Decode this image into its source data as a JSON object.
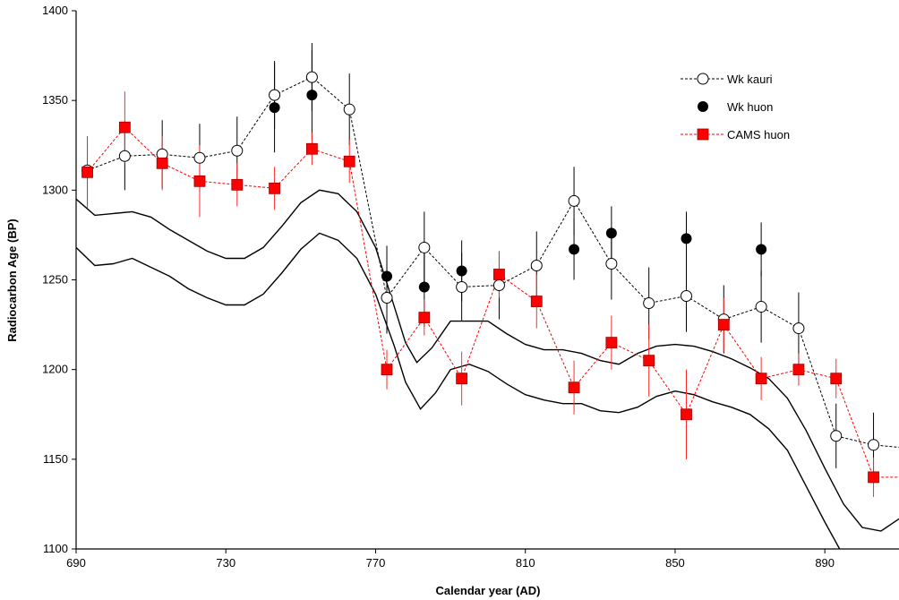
{
  "chart_data": {
    "type": "scatter",
    "title": "",
    "xlabel": "Calendar year (AD)",
    "ylabel": "Radiocarbon Age (BP)",
    "xlim": [
      690,
      910
    ],
    "ylim": [
      1100,
      1400
    ],
    "xticks": [
      690,
      730,
      770,
      810,
      850,
      890
    ],
    "yticks": [
      1100,
      1150,
      1200,
      1250,
      1300,
      1350,
      1400
    ],
    "grid": false,
    "legend_position": "top-right",
    "series": [
      {
        "name": "Wk kauri",
        "style": "dashed-line-open-circle",
        "color": "#000000",
        "points": [
          {
            "x": 693,
            "y": 1311,
            "err": 19
          },
          {
            "x": 703,
            "y": 1319,
            "err": 19
          },
          {
            "x": 713,
            "y": 1320,
            "err": 19
          },
          {
            "x": 723,
            "y": 1318,
            "err": 19
          },
          {
            "x": 733,
            "y": 1322,
            "err": 19
          },
          {
            "x": 743,
            "y": 1353,
            "err": 19
          },
          {
            "x": 753,
            "y": 1363,
            "err": 19
          },
          {
            "x": 763,
            "y": 1345,
            "err": 20
          },
          {
            "x": 773,
            "y": 1240,
            "err": 20
          },
          {
            "x": 783,
            "y": 1268,
            "err": 20
          },
          {
            "x": 793,
            "y": 1246,
            "err": 19
          },
          {
            "x": 803,
            "y": 1247,
            "err": 19
          },
          {
            "x": 813,
            "y": 1258,
            "err": 19
          },
          {
            "x": 823,
            "y": 1294,
            "err": 19
          },
          {
            "x": 833,
            "y": 1259,
            "err": 20
          },
          {
            "x": 843,
            "y": 1237,
            "err": 20
          },
          {
            "x": 853,
            "y": 1241,
            "err": 20
          },
          {
            "x": 863,
            "y": 1228,
            "err": 19
          },
          {
            "x": 873,
            "y": 1235,
            "err": 20
          },
          {
            "x": 883,
            "y": 1223,
            "err": 20
          },
          {
            "x": 893,
            "y": 1163,
            "err": 18
          },
          {
            "x": 903,
            "y": 1158,
            "err": 18
          },
          {
            "x": 913,
            "y": 1156,
            "err": 18
          }
        ]
      },
      {
        "name": "Wk huon",
        "style": "filled-circle",
        "color": "#000000",
        "points": [
          {
            "x": 743,
            "y": 1346,
            "err": 25
          },
          {
            "x": 753,
            "y": 1353,
            "err": 25
          },
          {
            "x": 773,
            "y": 1252,
            "err": 17
          },
          {
            "x": 783,
            "y": 1246,
            "err": 22
          },
          {
            "x": 793,
            "y": 1255,
            "err": 17
          },
          {
            "x": 823,
            "y": 1267,
            "err": 17
          },
          {
            "x": 833,
            "y": 1276,
            "err": 15
          },
          {
            "x": 853,
            "y": 1273,
            "err": 15
          },
          {
            "x": 873,
            "y": 1267,
            "err": 15
          }
        ]
      },
      {
        "name": "CAMS huon",
        "style": "dashed-line-filled-square",
        "color": "#ff0000",
        "points": [
          {
            "x": 693,
            "y": 1310,
            "err": 20
          },
          {
            "x": 703,
            "y": 1335,
            "err": 20
          },
          {
            "x": 713,
            "y": 1315,
            "err": 15
          },
          {
            "x": 723,
            "y": 1305,
            "err": 20
          },
          {
            "x": 733,
            "y": 1303,
            "err": 12
          },
          {
            "x": 743,
            "y": 1301,
            "err": 12
          },
          {
            "x": 753,
            "y": 1323,
            "err": 9
          },
          {
            "x": 763,
            "y": 1316,
            "err": 12
          },
          {
            "x": 773,
            "y": 1200,
            "err": 11
          },
          {
            "x": 783,
            "y": 1229,
            "err": 10
          },
          {
            "x": 793,
            "y": 1195,
            "err": 15
          },
          {
            "x": 803,
            "y": 1253,
            "err": 13
          },
          {
            "x": 813,
            "y": 1238,
            "err": 15
          },
          {
            "x": 823,
            "y": 1190,
            "err": 15
          },
          {
            "x": 833,
            "y": 1215,
            "err": 15
          },
          {
            "x": 843,
            "y": 1205,
            "err": 20
          },
          {
            "x": 853,
            "y": 1175,
            "err": 25
          },
          {
            "x": 863,
            "y": 1225,
            "err": 15
          },
          {
            "x": 873,
            "y": 1195,
            "err": 12
          },
          {
            "x": 883,
            "y": 1200,
            "err": 9
          },
          {
            "x": 893,
            "y": 1195,
            "err": 11
          },
          {
            "x": 903,
            "y": 1140,
            "err": 11
          },
          {
            "x": 913,
            "y": 1140,
            "err": 20
          }
        ]
      }
    ],
    "calibration_band": {
      "color": "#000000",
      "upper": [
        {
          "x": 690,
          "y": 1295
        },
        {
          "x": 695,
          "y": 1286
        },
        {
          "x": 705,
          "y": 1288
        },
        {
          "x": 710,
          "y": 1285
        },
        {
          "x": 715,
          "y": 1278
        },
        {
          "x": 720,
          "y": 1272
        },
        {
          "x": 725,
          "y": 1266
        },
        {
          "x": 730,
          "y": 1262
        },
        {
          "x": 735,
          "y": 1262
        },
        {
          "x": 740,
          "y": 1268
        },
        {
          "x": 745,
          "y": 1280
        },
        {
          "x": 750,
          "y": 1293
        },
        {
          "x": 755,
          "y": 1300
        },
        {
          "x": 760,
          "y": 1298
        },
        {
          "x": 765,
          "y": 1288
        },
        {
          "x": 770,
          "y": 1268
        },
        {
          "x": 775,
          "y": 1235
        },
        {
          "x": 778,
          "y": 1215
        },
        {
          "x": 781,
          "y": 1204
        },
        {
          "x": 785,
          "y": 1212
        },
        {
          "x": 790,
          "y": 1227
        },
        {
          "x": 795,
          "y": 1227
        },
        {
          "x": 800,
          "y": 1227
        },
        {
          "x": 805,
          "y": 1220
        },
        {
          "x": 810,
          "y": 1214
        },
        {
          "x": 815,
          "y": 1211
        },
        {
          "x": 820,
          "y": 1211
        },
        {
          "x": 825,
          "y": 1209
        },
        {
          "x": 830,
          "y": 1205
        },
        {
          "x": 835,
          "y": 1203
        },
        {
          "x": 840,
          "y": 1209
        },
        {
          "x": 845,
          "y": 1213
        },
        {
          "x": 850,
          "y": 1214
        },
        {
          "x": 855,
          "y": 1213
        },
        {
          "x": 860,
          "y": 1210
        },
        {
          "x": 865,
          "y": 1206
        },
        {
          "x": 870,
          "y": 1201
        },
        {
          "x": 875,
          "y": 1195
        },
        {
          "x": 880,
          "y": 1184
        },
        {
          "x": 885,
          "y": 1166
        },
        {
          "x": 890,
          "y": 1145
        },
        {
          "x": 895,
          "y": 1125
        },
        {
          "x": 900,
          "y": 1112
        },
        {
          "x": 905,
          "y": 1110
        },
        {
          "x": 910,
          "y": 1117
        },
        {
          "x": 915,
          "y": 1127
        }
      ],
      "lower": [
        {
          "x": 690,
          "y": 1268
        },
        {
          "x": 695,
          "y": 1258
        },
        {
          "x": 700,
          "y": 1259
        },
        {
          "x": 705,
          "y": 1262
        },
        {
          "x": 710,
          "y": 1257
        },
        {
          "x": 715,
          "y": 1252
        },
        {
          "x": 720,
          "y": 1245
        },
        {
          "x": 725,
          "y": 1240
        },
        {
          "x": 730,
          "y": 1236
        },
        {
          "x": 735,
          "y": 1236
        },
        {
          "x": 740,
          "y": 1242
        },
        {
          "x": 745,
          "y": 1254
        },
        {
          "x": 750,
          "y": 1267
        },
        {
          "x": 755,
          "y": 1276
        },
        {
          "x": 760,
          "y": 1272
        },
        {
          "x": 765,
          "y": 1262
        },
        {
          "x": 770,
          "y": 1242
        },
        {
          "x": 775,
          "y": 1213
        },
        {
          "x": 778,
          "y": 1193
        },
        {
          "x": 782,
          "y": 1178
        },
        {
          "x": 786,
          "y": 1187
        },
        {
          "x": 790,
          "y": 1200
        },
        {
          "x": 795,
          "y": 1203
        },
        {
          "x": 800,
          "y": 1199
        },
        {
          "x": 805,
          "y": 1192
        },
        {
          "x": 810,
          "y": 1186
        },
        {
          "x": 815,
          "y": 1183
        },
        {
          "x": 820,
          "y": 1181
        },
        {
          "x": 825,
          "y": 1181
        },
        {
          "x": 830,
          "y": 1177
        },
        {
          "x": 835,
          "y": 1176
        },
        {
          "x": 840,
          "y": 1179
        },
        {
          "x": 845,
          "y": 1185
        },
        {
          "x": 850,
          "y": 1188
        },
        {
          "x": 855,
          "y": 1186
        },
        {
          "x": 860,
          "y": 1182
        },
        {
          "x": 865,
          "y": 1179
        },
        {
          "x": 870,
          "y": 1175
        },
        {
          "x": 875,
          "y": 1167
        },
        {
          "x": 880,
          "y": 1155
        },
        {
          "x": 885,
          "y": 1135
        },
        {
          "x": 890,
          "y": 1115
        },
        {
          "x": 895,
          "y": 1096
        },
        {
          "x": 900,
          "y": 1084
        },
        {
          "x": 905,
          "y": 1080
        },
        {
          "x": 910,
          "y": 1086
        },
        {
          "x": 915,
          "y": 1094
        }
      ]
    }
  }
}
